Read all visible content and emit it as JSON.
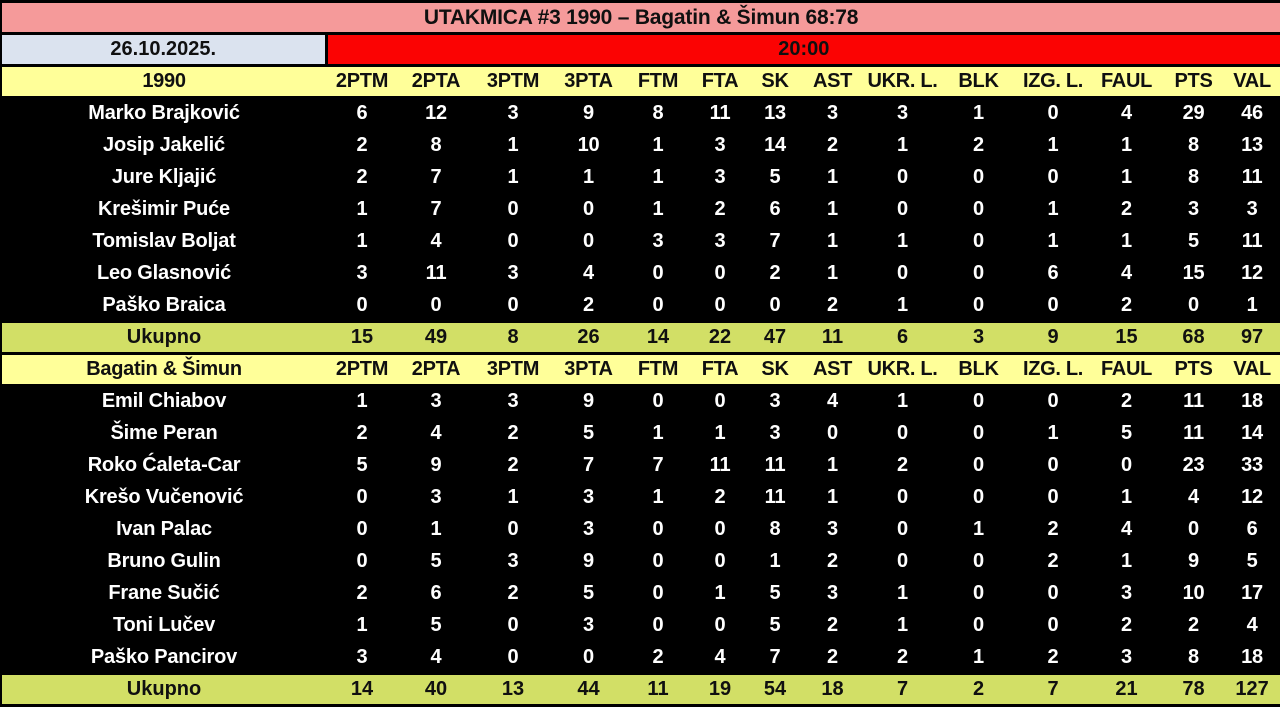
{
  "title": "UTAKMICA #3 1990 – Bagatin & Šimun 68:78",
  "date": "26.10.2025.",
  "time": "20:00",
  "total_label": "Ukupno",
  "columns": [
    "2PTM",
    "2PTA",
    "3PTM",
    "3PTA",
    "FTM",
    "FTA",
    "SK",
    "AST",
    "UKR. L.",
    "BLK",
    "IZG. L.",
    "FAUL",
    "PTS",
    "VAL"
  ],
  "colors": {
    "title_bg": "#f59a9a",
    "date_bg": "#dbe3ef",
    "time_bg": "#fb0303",
    "header_bg": "#ffff99",
    "total_bg": "#d2df66",
    "player_row_bg": "#000000",
    "player_row_text": "#ffffff"
  },
  "teams": [
    {
      "name": "1990",
      "players": [
        {
          "name": "Marko Brajković",
          "stats": [
            6,
            12,
            3,
            9,
            8,
            11,
            13,
            3,
            3,
            1,
            0,
            4,
            29,
            46
          ]
        },
        {
          "name": "Josip Jakelić",
          "stats": [
            2,
            8,
            1,
            10,
            1,
            3,
            14,
            2,
            1,
            2,
            1,
            1,
            8,
            13
          ]
        },
        {
          "name": "Jure Kljajić",
          "stats": [
            2,
            7,
            1,
            1,
            1,
            3,
            5,
            1,
            0,
            0,
            0,
            1,
            8,
            11
          ]
        },
        {
          "name": "Krešimir Puće",
          "stats": [
            1,
            7,
            0,
            0,
            1,
            2,
            6,
            1,
            0,
            0,
            1,
            2,
            3,
            3
          ]
        },
        {
          "name": "Tomislav Boljat",
          "stats": [
            1,
            4,
            0,
            0,
            3,
            3,
            7,
            1,
            1,
            0,
            1,
            1,
            5,
            11
          ]
        },
        {
          "name": "Leo Glasnović",
          "stats": [
            3,
            11,
            3,
            4,
            0,
            0,
            2,
            1,
            0,
            0,
            6,
            4,
            15,
            12
          ]
        },
        {
          "name": "Paško Braica",
          "stats": [
            0,
            0,
            0,
            2,
            0,
            0,
            0,
            2,
            1,
            0,
            0,
            2,
            0,
            1
          ]
        }
      ],
      "totals": [
        15,
        49,
        8,
        26,
        14,
        22,
        47,
        11,
        6,
        3,
        9,
        15,
        68,
        97
      ]
    },
    {
      "name": "Bagatin & Šimun",
      "players": [
        {
          "name": "Emil Chiabov",
          "stats": [
            1,
            3,
            3,
            9,
            0,
            0,
            3,
            4,
            1,
            0,
            0,
            2,
            11,
            18
          ]
        },
        {
          "name": "Šime Peran",
          "stats": [
            2,
            4,
            2,
            5,
            1,
            1,
            3,
            0,
            0,
            0,
            1,
            5,
            11,
            14
          ]
        },
        {
          "name": "Roko Ćaleta-Car",
          "stats": [
            5,
            9,
            2,
            7,
            7,
            11,
            11,
            1,
            2,
            0,
            0,
            0,
            23,
            33
          ]
        },
        {
          "name": "Krešo Vučenović",
          "stats": [
            0,
            3,
            1,
            3,
            1,
            2,
            11,
            1,
            0,
            0,
            0,
            1,
            4,
            12
          ]
        },
        {
          "name": "Ivan Palac",
          "stats": [
            0,
            1,
            0,
            3,
            0,
            0,
            8,
            3,
            0,
            1,
            2,
            4,
            0,
            6
          ]
        },
        {
          "name": "Bruno Gulin",
          "stats": [
            0,
            5,
            3,
            9,
            0,
            0,
            1,
            2,
            0,
            0,
            2,
            1,
            9,
            5
          ]
        },
        {
          "name": "Frane Sučić",
          "stats": [
            2,
            6,
            2,
            5,
            0,
            1,
            5,
            3,
            1,
            0,
            0,
            3,
            10,
            17
          ]
        },
        {
          "name": "Toni Lučev",
          "stats": [
            1,
            5,
            0,
            3,
            0,
            0,
            5,
            2,
            1,
            0,
            0,
            2,
            2,
            4
          ]
        },
        {
          "name": "Paško Pancirov",
          "stats": [
            3,
            4,
            0,
            0,
            2,
            4,
            7,
            2,
            2,
            1,
            2,
            3,
            8,
            18
          ]
        }
      ],
      "totals": [
        14,
        40,
        13,
        44,
        11,
        19,
        54,
        18,
        7,
        2,
        7,
        21,
        78,
        127
      ]
    }
  ]
}
